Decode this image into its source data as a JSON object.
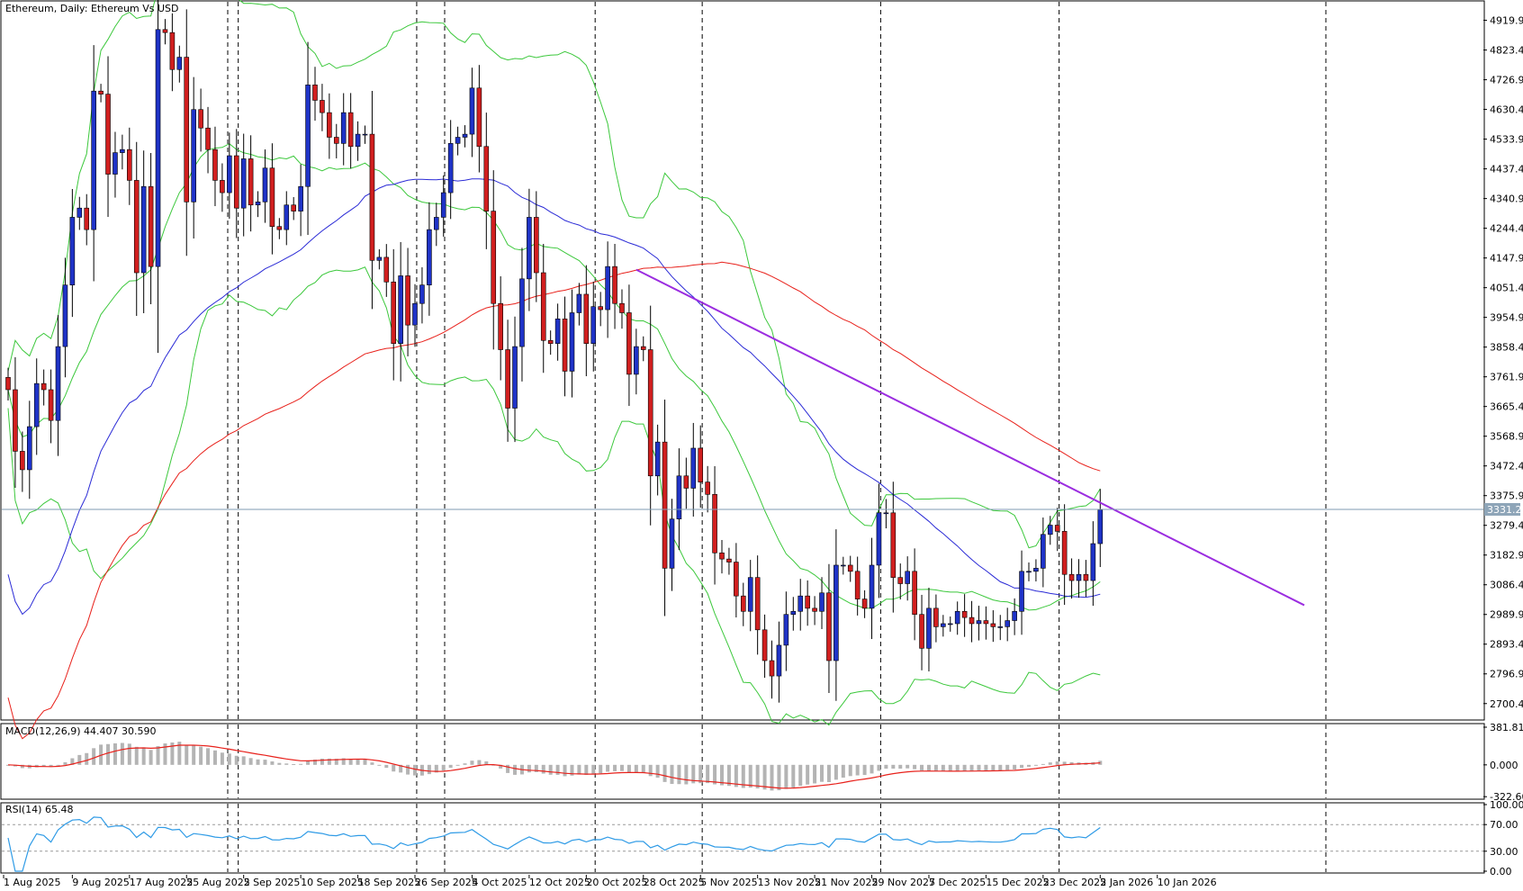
{
  "header": {
    "title": "Ethereum, Daily:  Ethereum Vs USD"
  },
  "current_price": "3331.29",
  "colors": {
    "bull": "#1f33c7",
    "bear": "#d11f1f",
    "ma_short": "#2b2bd6",
    "ma_long": "#e8211b",
    "bollinger": "#3cc83c",
    "trendline": "#9b2de0",
    "macd_hist": "#b4b4b4",
    "macd_signal": "#e8211b",
    "rsi": "#2f9be6",
    "price_line": "#7f9bb3"
  },
  "x_labels": [
    "1 Aug 2025",
    "9 Aug 2025",
    "17 Aug 2025",
    "25 Aug 2025",
    "2 Sep 2025",
    "10 Sep 2025",
    "18 Sep 2025",
    "26 Sep 2025",
    "4 Oct 2025",
    "12 Oct 2025",
    "20 Oct 2025",
    "28 Oct 2025",
    "5 Nov 2025",
    "13 Nov 2025",
    "21 Nov 2025",
    "29 Nov 2025",
    "7 Dec 2025",
    "15 Dec 2025",
    "23 Dec 2025",
    "2 Jan 2026",
    "10 Jan 2026"
  ],
  "chart_data": [
    {
      "type": "candlestick",
      "title": "Ethereum, Daily:  Ethereum Vs USD",
      "y_ticks": [
        "4919.91",
        "4823.41",
        "4726.91",
        "4630.41",
        "4533.91",
        "4437.41",
        "4340.91",
        "4244.41",
        "4147.91",
        "4051.41",
        "3954.91",
        "3858.41",
        "3761.91",
        "3665.41",
        "3568.91",
        "3472.41",
        "3375.91",
        "3279.41",
        "3182.91",
        "3086.41",
        "2989.91",
        "2893.41",
        "2796.91",
        "2700.41"
      ],
      "ylim": [
        2650,
        4980
      ],
      "ohlc_close": [
        3720,
        3520,
        3460,
        3600,
        3740,
        3720,
        3620,
        3860,
        4060,
        4280,
        4310,
        4240,
        4690,
        4680,
        4420,
        4490,
        4500,
        4400,
        4100,
        4380,
        4120,
        4890,
        4880,
        4760,
        4800,
        4330,
        4630,
        4570,
        4500,
        4400,
        4360,
        4480,
        4310,
        4470,
        4320,
        4330,
        4440,
        4250,
        4240,
        4320,
        4300,
        4380,
        4710,
        4660,
        4620,
        4540,
        4520,
        4620,
        4510,
        4550,
        4550,
        4140,
        4150,
        4070,
        3870,
        4090,
        3930,
        4000,
        4060,
        4240,
        4280,
        4360,
        4520,
        4540,
        4550,
        4700,
        4510,
        4300,
        4000,
        3850,
        3660,
        3860,
        4080,
        4280,
        4100,
        3880,
        3870,
        3950,
        3780,
        3970,
        4030,
        3870,
        3990,
        3980,
        4120,
        4000,
        3970,
        3770,
        3860,
        3850,
        3440,
        3550,
        3140,
        3300,
        3440,
        3400,
        3530,
        3420,
        3380,
        3190,
        3170,
        3160,
        3050,
        3000,
        3110,
        2940,
        2840,
        2790,
        2890,
        2990,
        3000,
        3050,
        3010,
        3000,
        3060,
        2840,
        3150,
        3150,
        3130,
        3040,
        3010,
        3150,
        3320,
        3320,
        3110,
        3090,
        3130,
        2990,
        2880,
        3010,
        2950,
        2960,
        2960,
        3000,
        2980,
        2960,
        2970,
        2960,
        2950,
        2950,
        2970,
        3000,
        3130,
        3130,
        3140,
        3250,
        3280,
        3260,
        3120,
        3100,
        3120,
        3100,
        3220,
        3330
      ],
      "series": [
        {
          "name": "",
          "values_ref": "ma_short"
        },
        {
          "name": "",
          "values_ref": "ma_long"
        },
        {
          "name": "",
          "values_ref": "bollinger"
        }
      ],
      "trendline": {
        "from": [
          "27 Oct 2025",
          4110
        ],
        "to": [
          "14 Jan 2026",
          3020
        ]
      },
      "current_price_line": 3331.29
    },
    {
      "type": "bar",
      "title": "MACD(12,26,9) 44.407 30.590",
      "y_ticks": [
        "381.814",
        "0.000",
        "-322.609"
      ],
      "ylim": [
        -330,
        400
      ],
      "macd": 44.407,
      "signal": 30.59
    },
    {
      "type": "line",
      "title": "RSI(14) 65.48",
      "y_ticks": [
        "100.00",
        "70.00",
        "30.00",
        "0.00"
      ],
      "ylim": [
        0,
        100
      ],
      "last": 65.48,
      "levels": [
        70,
        30
      ]
    }
  ]
}
